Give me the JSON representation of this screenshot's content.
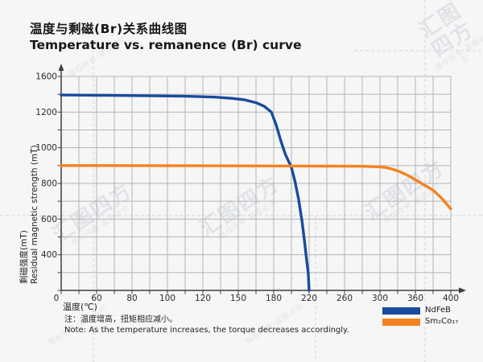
{
  "colors": {
    "background": "#f5f6f5",
    "grid": "#b4b4b4",
    "axis": "#3f3f3f",
    "text": "#1c1c1c",
    "watermark_dash": "#c7cfdf",
    "ndfeb_blue": "#1a4b9c",
    "smco_orange": "#f58220"
  },
  "chart_data": {
    "type": "line",
    "title_zh": "温度与剩磁(Br)关系曲线图",
    "title_en": "Temperature vs. remanence (Br) curve",
    "xlabel": "温度(℃)",
    "ylabel_zh": "剩磁强度(mT)",
    "ylabel_en": "Residual magnetic strength (mT)",
    "x_tick_labels": [
      0,
      60,
      80,
      100,
      120,
      150,
      180,
      220,
      260,
      300,
      360,
      400
    ],
    "y_tick_labels": [
      1600,
      1200,
      1000,
      800,
      600,
      400
    ],
    "origin_label": "0",
    "axis_note": "tick labels are evenly spaced although values are non-uniform",
    "grid": true,
    "legend_position": "bottom-right",
    "series": [
      {
        "name": "NdFeB",
        "color": "#1a4b9c",
        "points": [
          [
            0,
            1392
          ],
          [
            40,
            1390
          ],
          [
            80,
            1385
          ],
          [
            110,
            1378
          ],
          [
            130,
            1368
          ],
          [
            145,
            1354
          ],
          [
            155,
            1338
          ],
          [
            165,
            1306
          ],
          [
            172,
            1264
          ],
          [
            178,
            1200
          ],
          [
            183,
            1125
          ],
          [
            188,
            1040
          ],
          [
            193,
            965
          ],
          [
            200,
            890
          ],
          [
            204,
            812
          ],
          [
            208,
            714
          ],
          [
            212,
            588
          ],
          [
            215,
            466
          ],
          [
            217,
            356
          ],
          [
            219,
            196
          ],
          [
            220,
            0
          ]
        ]
      },
      {
        "name": "Sm₂Co₁₇",
        "color": "#f58220",
        "points": [
          [
            0,
            900
          ],
          [
            60,
            900
          ],
          [
            120,
            899
          ],
          [
            180,
            898
          ],
          [
            240,
            897
          ],
          [
            280,
            896
          ],
          [
            300,
            893
          ],
          [
            310,
            889
          ],
          [
            320,
            881
          ],
          [
            335,
            864
          ],
          [
            350,
            840
          ],
          [
            365,
            806
          ],
          [
            380,
            762
          ],
          [
            390,
            715
          ],
          [
            400,
            657
          ]
        ]
      }
    ],
    "note_zh": "注：温度增高，扭矩相应减小。",
    "note_en": "Note: As the temperature increases, the torque decreases accordingly."
  },
  "watermark": {
    "brand": "汇图四方",
    "notice": "版权所有 盗图必究"
  }
}
